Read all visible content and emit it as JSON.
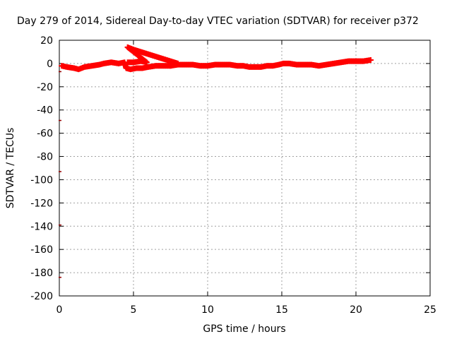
{
  "chart_data": {
    "type": "scatter",
    "title": "Day 279 of 2014, Sidereal Day-to-day VTEC variation (SDTVAR) for receiver p372",
    "xlabel": "GPS time / hours",
    "ylabel": "SDTVAR / TECUs",
    "xlim": [
      0,
      25
    ],
    "ylim": [
      -200,
      20
    ],
    "xticks": [
      0,
      5,
      10,
      15,
      20,
      25
    ],
    "yticks": [
      20,
      0,
      -20,
      -40,
      -60,
      -80,
      -100,
      -120,
      -140,
      -160,
      -180,
      -200
    ],
    "grid": true,
    "legend": "none",
    "series_color": "#ff0000",
    "series": [
      {
        "points": [
          [
            0.15,
            -2
          ],
          [
            0.5,
            -3
          ],
          [
            1.0,
            -4
          ],
          [
            1.3,
            -5
          ],
          [
            1.7,
            -3
          ],
          [
            2.2,
            -2
          ],
          [
            2.7,
            -1
          ],
          [
            3.0,
            0
          ],
          [
            3.5,
            1
          ],
          [
            4.0,
            0
          ],
          [
            4.4,
            1
          ],
          [
            4.5,
            -4
          ],
          [
            4.8,
            -5
          ],
          [
            5.2,
            -4
          ],
          [
            5.6,
            -4
          ],
          [
            6.0,
            -3
          ],
          [
            6.5,
            -2
          ],
          [
            7.0,
            -2
          ],
          [
            7.5,
            -2
          ],
          [
            4.6,
            1
          ],
          [
            5.0,
            1
          ],
          [
            5.5,
            2
          ],
          [
            5.9,
            1
          ],
          [
            4.6,
            14
          ],
          [
            5.0,
            12
          ],
          [
            5.5,
            10
          ],
          [
            6.0,
            8
          ],
          [
            6.5,
            6
          ],
          [
            7.0,
            4
          ],
          [
            7.5,
            2
          ],
          [
            8.0,
            0
          ],
          [
            7.5,
            -2
          ],
          [
            8.0,
            -1
          ],
          [
            8.5,
            -1
          ],
          [
            9.0,
            -1
          ],
          [
            9.5,
            -2
          ],
          [
            10.0,
            -2
          ],
          [
            10.5,
            -1
          ],
          [
            11.0,
            -1
          ],
          [
            11.5,
            -1
          ],
          [
            12.0,
            -2
          ],
          [
            12.4,
            -2
          ],
          [
            12.8,
            -3
          ],
          [
            13.2,
            -3
          ],
          [
            13.6,
            -3
          ],
          [
            14.0,
            -2
          ],
          [
            14.4,
            -2
          ],
          [
            14.8,
            -1
          ],
          [
            15.1,
            0
          ],
          [
            15.5,
            0
          ],
          [
            16.0,
            -1
          ],
          [
            16.5,
            -1
          ],
          [
            17.0,
            -1
          ],
          [
            17.5,
            -2
          ],
          [
            18.0,
            -1
          ],
          [
            18.5,
            0
          ],
          [
            19.0,
            1
          ],
          [
            19.5,
            2
          ],
          [
            20.0,
            2
          ],
          [
            20.5,
            2
          ],
          [
            21.0,
            3
          ]
        ]
      }
    ],
    "edge_marks": [
      -7,
      -49,
      -93,
      -139,
      -184
    ]
  }
}
